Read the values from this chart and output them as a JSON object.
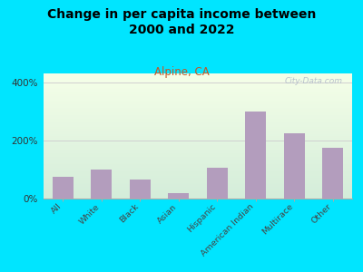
{
  "title": "Change in per capita income between\n2000 and 2022",
  "subtitle": "Alpine, CA",
  "categories": [
    "All",
    "White",
    "Black",
    "Asian",
    "Hispanic",
    "American Indian",
    "Multirace",
    "Other"
  ],
  "values": [
    75,
    100,
    65,
    20,
    107,
    300,
    225,
    175
  ],
  "bar_color": "#b39dbd",
  "background_outer": "#00e5ff",
  "title_fontsize": 10,
  "subtitle_fontsize": 8.5,
  "subtitle_color": "#c05828",
  "ylim": [
    0,
    430
  ],
  "yticks": [
    0,
    200,
    400
  ],
  "ytick_labels": [
    "0%",
    "200%",
    "400%"
  ],
  "watermark": "City-Data.com",
  "watermark_color": "#b0b8c8",
  "grid_color": "#d0d0d0"
}
